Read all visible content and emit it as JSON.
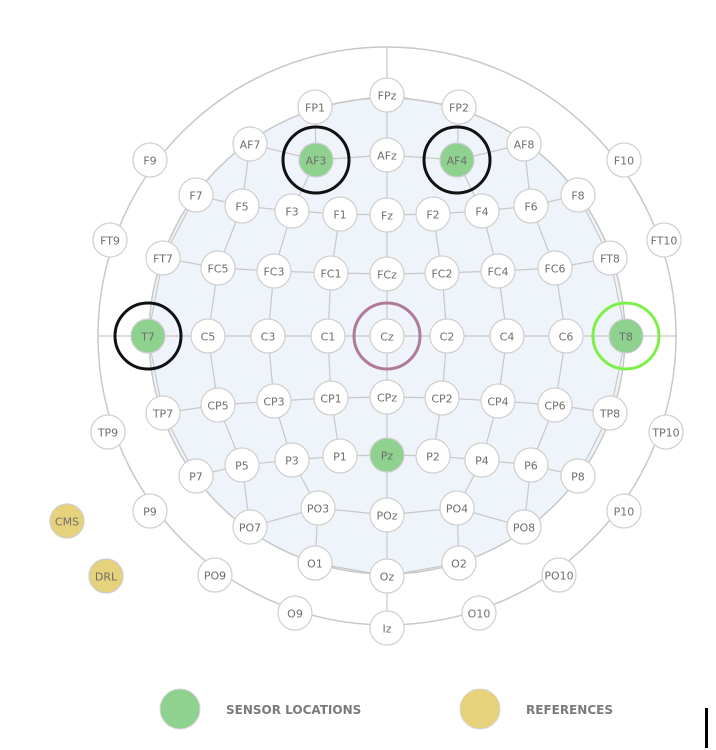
{
  "colors": {
    "sensor": "#8fd18f",
    "reference": "#e6d27a",
    "highlight_black": "#111111",
    "highlight_purple": "#b07a9a",
    "highlight_green": "#7ff04a",
    "head_fill": "#eef4fa",
    "line": "#c8c8c8",
    "node_border": "#cfcfcf"
  },
  "electrodes": [
    {
      "id": "FPz"
    },
    {
      "id": "FP1"
    },
    {
      "id": "FP2"
    },
    {
      "id": "AF7"
    },
    {
      "id": "AF3",
      "sensor": true,
      "highlight": "black"
    },
    {
      "id": "AFz"
    },
    {
      "id": "AF4",
      "sensor": true,
      "highlight": "black"
    },
    {
      "id": "AF8"
    },
    {
      "id": "F9"
    },
    {
      "id": "F10"
    },
    {
      "id": "F7"
    },
    {
      "id": "F5"
    },
    {
      "id": "F3"
    },
    {
      "id": "F1"
    },
    {
      "id": "Fz"
    },
    {
      "id": "F2"
    },
    {
      "id": "F4"
    },
    {
      "id": "F6"
    },
    {
      "id": "F8"
    },
    {
      "id": "FT9"
    },
    {
      "id": "FT10"
    },
    {
      "id": "FT7"
    },
    {
      "id": "FC5"
    },
    {
      "id": "FC3"
    },
    {
      "id": "FC1"
    },
    {
      "id": "FCz"
    },
    {
      "id": "FC2"
    },
    {
      "id": "FC4"
    },
    {
      "id": "FC6"
    },
    {
      "id": "FT8"
    },
    {
      "id": "T7",
      "sensor": true,
      "highlight": "black"
    },
    {
      "id": "C5"
    },
    {
      "id": "C3"
    },
    {
      "id": "C1"
    },
    {
      "id": "Cz",
      "highlight": "purple"
    },
    {
      "id": "C2"
    },
    {
      "id": "C4"
    },
    {
      "id": "C6"
    },
    {
      "id": "T8",
      "sensor": true,
      "highlight": "green"
    },
    {
      "id": "TP7"
    },
    {
      "id": "CP5"
    },
    {
      "id": "CP3"
    },
    {
      "id": "CP1"
    },
    {
      "id": "CPz"
    },
    {
      "id": "CP2"
    },
    {
      "id": "CP4"
    },
    {
      "id": "CP6"
    },
    {
      "id": "TP8"
    },
    {
      "id": "TP9"
    },
    {
      "id": "TP10"
    },
    {
      "id": "P7"
    },
    {
      "id": "P5"
    },
    {
      "id": "P3"
    },
    {
      "id": "P1"
    },
    {
      "id": "Pz",
      "sensor": true
    },
    {
      "id": "P2"
    },
    {
      "id": "P4"
    },
    {
      "id": "P6"
    },
    {
      "id": "P8"
    },
    {
      "id": "P9"
    },
    {
      "id": "P10"
    },
    {
      "id": "PO3"
    },
    {
      "id": "POz"
    },
    {
      "id": "PO4"
    },
    {
      "id": "PO7"
    },
    {
      "id": "PO8"
    },
    {
      "id": "PO9"
    },
    {
      "id": "PO10"
    },
    {
      "id": "O1"
    },
    {
      "id": "Oz"
    },
    {
      "id": "O2"
    },
    {
      "id": "O9"
    },
    {
      "id": "Iz"
    },
    {
      "id": "O10"
    },
    {
      "id": "CMS",
      "reference": true
    },
    {
      "id": "DRL",
      "reference": true
    }
  ],
  "legend": {
    "sensor_label": "SENSOR LOCATIONS",
    "reference_label": "REFERENCES"
  }
}
